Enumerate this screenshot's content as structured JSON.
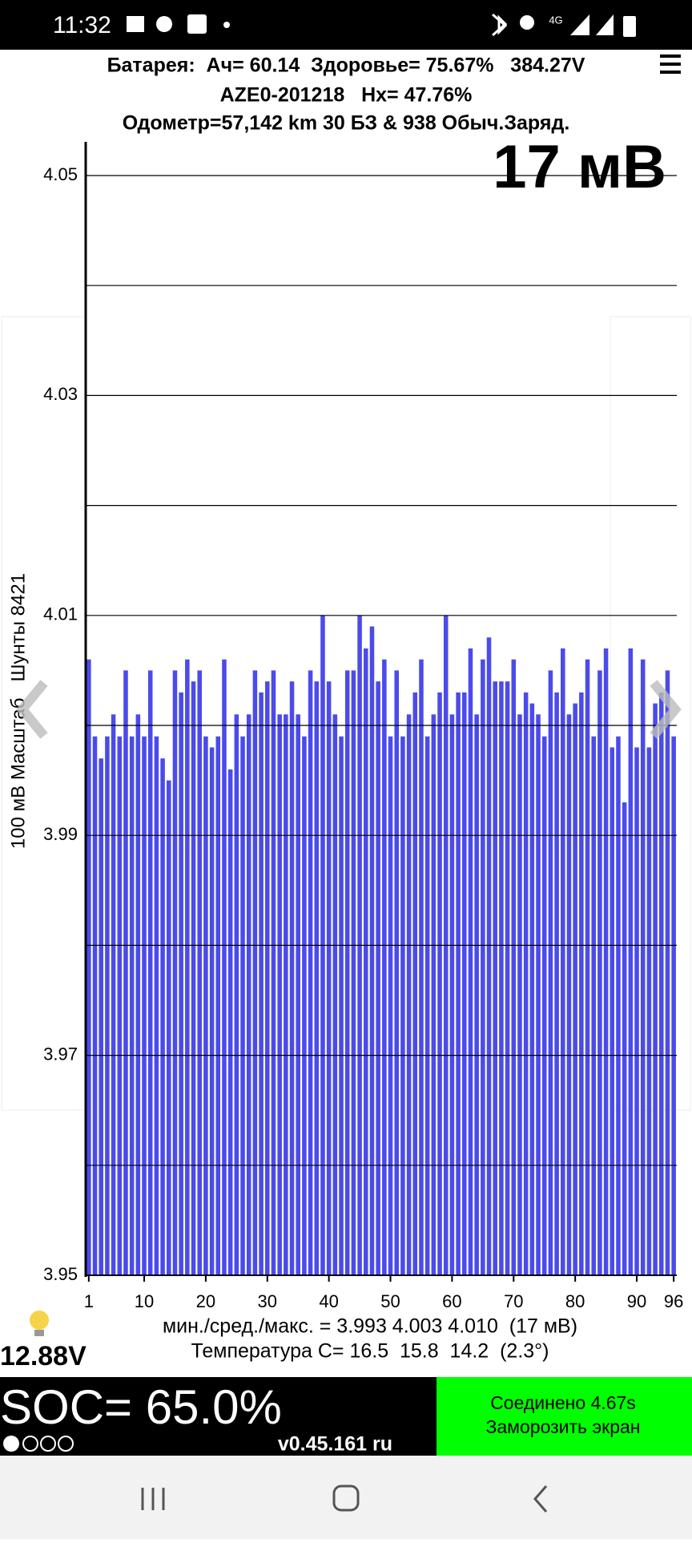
{
  "status": {
    "time": "11:32",
    "network": "4G"
  },
  "header": {
    "line1": "Батарея:  Ач= 60.14  Здоровье= 75.67%   384.27V",
    "line2": "AZE0-201218   Hx= 47.76%",
    "line3": "Одометр=57,142 km 30 БЗ & 938 Обыч.Заряд."
  },
  "spread": "17 мВ",
  "chart_data": {
    "type": "bar",
    "ylabel": "100 мВ Масштаб   Шунты 8421",
    "color": "#4b4bea",
    "grid": true,
    "x": [
      1,
      2,
      3,
      4,
      5,
      6,
      7,
      8,
      9,
      10,
      11,
      12,
      13,
      14,
      15,
      16,
      17,
      18,
      19,
      20,
      21,
      22,
      23,
      24,
      25,
      26,
      27,
      28,
      29,
      30,
      31,
      32,
      33,
      34,
      35,
      36,
      37,
      38,
      39,
      40,
      41,
      42,
      43,
      44,
      45,
      46,
      47,
      48,
      49,
      50,
      51,
      52,
      53,
      54,
      55,
      56,
      57,
      58,
      59,
      60,
      61,
      62,
      63,
      64,
      65,
      66,
      67,
      68,
      69,
      70,
      71,
      72,
      73,
      74,
      75,
      76,
      77,
      78,
      79,
      80,
      81,
      82,
      83,
      84,
      85,
      86,
      87,
      88,
      89,
      90,
      91,
      92,
      93,
      94,
      95,
      96
    ],
    "values": [
      4.006,
      3.999,
      3.997,
      3.999,
      4.001,
      3.999,
      4.005,
      3.999,
      4.001,
      3.999,
      4.005,
      3.999,
      3.997,
      3.995,
      4.005,
      4.003,
      4.006,
      4.004,
      4.005,
      3.999,
      3.998,
      3.999,
      4.006,
      3.996,
      4.001,
      3.999,
      4.001,
      4.005,
      4.003,
      4.004,
      4.005,
      4.001,
      4.001,
      4.004,
      4.001,
      3.999,
      4.005,
      4.004,
      4.01,
      4.004,
      4.001,
      3.999,
      4.005,
      4.005,
      4.01,
      4.007,
      4.009,
      4.004,
      4.006,
      3.999,
      4.005,
      3.999,
      4.001,
      4.003,
      4.006,
      3.999,
      4.001,
      4.003,
      4.01,
      4.001,
      4.003,
      4.003,
      4.007,
      4.001,
      4.006,
      4.008,
      4.004,
      4.004,
      4.004,
      4.006,
      4.001,
      4.003,
      4.002,
      4.001,
      3.999,
      4.005,
      4.003,
      4.007,
      4.001,
      4.002,
      4.003,
      4.006,
      3.999,
      4.005,
      4.007,
      3.998,
      3.999,
      3.993,
      4.007,
      3.998,
      4.006,
      3.998,
      4.002,
      4.003,
      4.005,
      3.999
    ],
    "xlim": [
      0.5,
      96.5
    ],
    "xticks": [
      1,
      10,
      20,
      30,
      40,
      50,
      60,
      70,
      80,
      90,
      96
    ],
    "ylim": [
      3.95,
      4.05
    ],
    "yticks": [
      3.95,
      3.97,
      3.99,
      4.01,
      4.03,
      4.05
    ],
    "yminor": [
      3.96,
      3.98,
      4.0,
      4.02,
      4.04
    ]
  },
  "stats": {
    "line1": "мин./сред./макс. = 3.993 4.003 4.010  (17 мВ)",
    "line2": "Температура C= 16.5  15.8  14.2  (2.3°)"
  },
  "footer": {
    "aux_voltage": "12.88V",
    "soc": "SOC= 65.0%",
    "version": "v0.45.161 ru",
    "connected": "Соединено 4.67s",
    "freeze": "Заморозить экран"
  }
}
